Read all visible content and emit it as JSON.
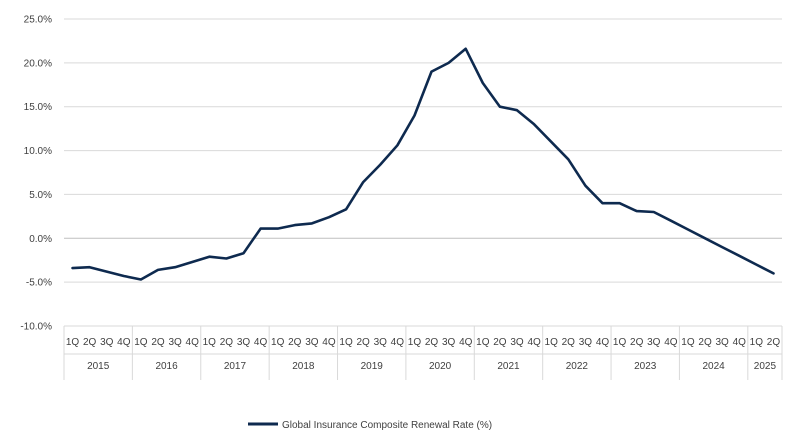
{
  "chart_data": {
    "type": "line",
    "y_ticks": [
      "25.0%",
      "20.0%",
      "15.0%",
      "10.0%",
      "5.0%",
      "0.0%",
      "-5.0%",
      "-10.0%"
    ],
    "ylim": [
      -10,
      25
    ],
    "grid": true,
    "quarter_labels": [
      "1Q",
      "2Q",
      "3Q",
      "4Q"
    ],
    "years": [
      {
        "label": "2015",
        "quarters": 4
      },
      {
        "label": "2016",
        "quarters": 4
      },
      {
        "label": "2017",
        "quarters": 4
      },
      {
        "label": "2018",
        "quarters": 4
      },
      {
        "label": "2019",
        "quarters": 4
      },
      {
        "label": "2020",
        "quarters": 4
      },
      {
        "label": "2021",
        "quarters": 4
      },
      {
        "label": "2022",
        "quarters": 4
      },
      {
        "label": "2023",
        "quarters": 4
      },
      {
        "label": "2024",
        "quarters": 4
      },
      {
        "label": "2025",
        "quarters": 2
      }
    ],
    "series": [
      {
        "name": "Global Insurance Composite Renewal Rate (%)",
        "color": "#0e2a4f",
        "values": [
          -3.4,
          -3.3,
          -3.8,
          -4.3,
          -4.7,
          -3.6,
          -3.3,
          -2.7,
          -2.1,
          -2.3,
          -1.7,
          1.1,
          1.1,
          1.5,
          1.7,
          2.4,
          3.3,
          6.4,
          8.4,
          10.6,
          14.0,
          19.0,
          20.0,
          21.6,
          17.7,
          15.0,
          14.6,
          13.0,
          11.0,
          9.0,
          6.0,
          4.0,
          4.0,
          3.1,
          3.0,
          2.0,
          1.0,
          0.0,
          -1.0,
          -2.0,
          -3.0,
          -4.0
        ]
      }
    ],
    "legend": {
      "position": "bottom"
    }
  }
}
